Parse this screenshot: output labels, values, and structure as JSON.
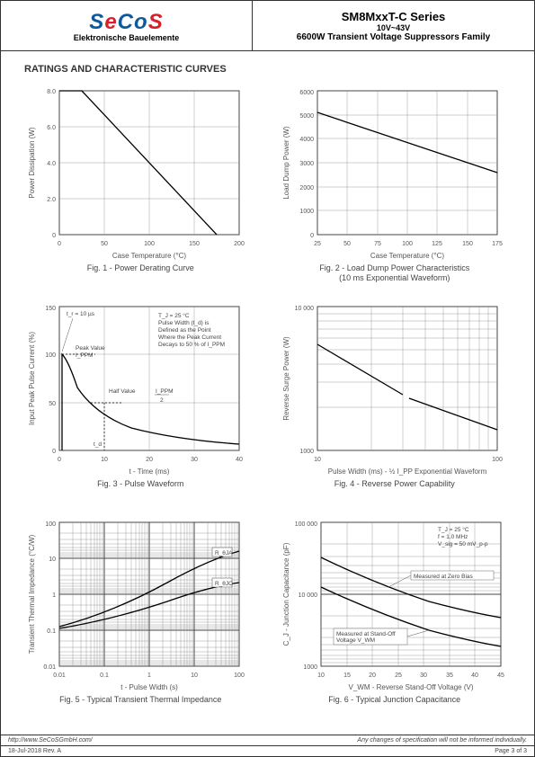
{
  "header": {
    "logo_text": "SeCoS",
    "logo_colors": [
      "#0b5aa0",
      "#d81f2a",
      "#0b5aa0",
      "#0b5aa0",
      "#d81f2a"
    ],
    "logo_sub": "Elektronische Bauelemente",
    "title_main": "SM8MxxT-C Series",
    "title_mid": "10V~43V",
    "title_sub": "6600W Transient Voltage Suppressors Family"
  },
  "section_title": "RATINGS AND CHARACTERISTIC CURVES",
  "figs": {
    "f1": {
      "caption": "Fig. 1 - Power Derating Curve",
      "xlabel": "Case Temperature (°C)",
      "ylabel": "Power Dissipation (W)",
      "xlim": [
        0,
        200
      ],
      "ylim": [
        0,
        8
      ],
      "xticks": [
        0,
        50,
        100,
        150,
        200
      ],
      "yticks": [
        0,
        2,
        4,
        6,
        8
      ],
      "ytick_labels": [
        "0",
        "2.0",
        "4.0",
        "6.0",
        "8.0"
      ],
      "line": [
        [
          0,
          8
        ],
        [
          25,
          8
        ],
        [
          175,
          0
        ]
      ]
    },
    "f2": {
      "caption": "Fig. 2 - Load Dump Power Characteristics\n(10 ms Exponential Waveform)",
      "xlabel": "Case Temperature (°C)",
      "ylabel": "Load Dump Power (W)",
      "xlim": [
        25,
        175
      ],
      "ylim": [
        0,
        6000
      ],
      "xticks": [
        25,
        50,
        75,
        100,
        125,
        150,
        175
      ],
      "yticks": [
        0,
        1000,
        2000,
        3000,
        4000,
        5000,
        6000
      ],
      "line": [
        [
          25,
          5100
        ],
        [
          175,
          2600
        ]
      ]
    },
    "f3": {
      "caption": "Fig. 3 - Pulse Waveform",
      "xlabel": "t - Time (ms)",
      "ylabel": "Input Peak Pulse Current (%)",
      "xlim": [
        0,
        40
      ],
      "ylim": [
        0,
        150
      ],
      "xticks": [
        0,
        10,
        20,
        30,
        40
      ],
      "yticks": [
        0,
        50,
        100,
        150
      ],
      "annotations": [
        "t_r = 10 µs",
        "Peak Value I_PPM",
        "Half Value",
        "T_J = 25 °C",
        "Pulse Width (t_d) is Defined as the Point Where the Peak Current Decays to 50 % of I_PPM",
        "I_PPM / 2",
        "t_d"
      ]
    },
    "f4": {
      "caption": "Fig. 4 - Reverse Power Capability",
      "xlabel": "Pulse Width (ms) - ½ I_PP Exponential Waveform",
      "ylabel": "Reverse Surge Power (W)",
      "xlim_log": [
        10,
        100
      ],
      "ylim_log": [
        1000,
        10000
      ],
      "line": [
        [
          10,
          5400
        ],
        [
          100,
          1400
        ]
      ]
    },
    "f5": {
      "caption": "Fig. 5 - Typical Transient Thermal Impedance",
      "xlabel": "t - Pulse Width (s)",
      "ylabel": "Transient Thermal Impedance (°C/W)",
      "xlim_log": [
        0.01,
        100
      ],
      "ylim_log": [
        0.01,
        100
      ],
      "curves": [
        "R_θJA",
        "R_θJC"
      ]
    },
    "f6": {
      "caption": "Fig. 6 - Typical Junction Capacitance",
      "xlabel": "V_WM - Reverse Stand-Off Voltage (V)",
      "ylabel": "C_J - Junction Capacitance (pF)",
      "xlim": [
        10,
        45
      ],
      "ylim_log": [
        1000,
        100000
      ],
      "xticks": [
        10,
        15,
        20,
        25,
        30,
        35,
        40,
        45
      ],
      "annotations": [
        "T_J = 25 °C",
        "f = 1.0 MHz",
        "V_sig = 50 mV_p-p",
        "Measured at Zero Bias",
        "Measured at Stand-Off Voltage V_WM"
      ]
    }
  },
  "footer": {
    "url": "http://www.SeCoSGmbH.com/",
    "right_note": "Any changes of specification will not be informed individually.",
    "date_rev": "18-Jul-2018 Rev. A",
    "page": "Page 3 of 3"
  }
}
